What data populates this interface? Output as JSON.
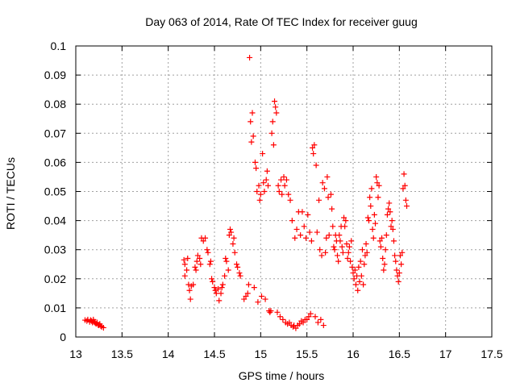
{
  "chart_data": {
    "type": "scatter",
    "title": "Day 063 of 2014, Rate Of TEC Index for receiver guug",
    "xlabel": "GPS time / hours",
    "ylabel": "ROTI / TECUs",
    "xlim": [
      13,
      17.5
    ],
    "ylim": [
      0,
      0.1
    ],
    "xticks": [
      "13",
      "13.5",
      "14",
      "14.5",
      "15",
      "15.5",
      "16",
      "16.5",
      "17",
      "17.5"
    ],
    "yticks": [
      "0",
      "0.01",
      "0.02",
      "0.03",
      "0.04",
      "0.05",
      "0.06",
      "0.07",
      "0.08",
      "0.09",
      "0.1"
    ],
    "grid": true,
    "marker": "+",
    "color": "#ff0000",
    "points": [
      [
        13.1,
        0.0058
      ],
      [
        13.12,
        0.0055
      ],
      [
        13.13,
        0.006
      ],
      [
        13.15,
        0.0052
      ],
      [
        13.16,
        0.0058
      ],
      [
        13.17,
        0.0055
      ],
      [
        13.18,
        0.005
      ],
      [
        13.19,
        0.006
      ],
      [
        13.2,
        0.0052
      ],
      [
        13.21,
        0.0048
      ],
      [
        13.22,
        0.0045
      ],
      [
        13.23,
        0.005
      ],
      [
        13.24,
        0.0042
      ],
      [
        13.25,
        0.004
      ],
      [
        13.26,
        0.0045
      ],
      [
        13.27,
        0.0038
      ],
      [
        13.28,
        0.0035
      ],
      [
        13.3,
        0.0032
      ],
      [
        14.17,
        0.0265
      ],
      [
        14.18,
        0.025
      ],
      [
        14.18,
        0.021
      ],
      [
        14.2,
        0.023
      ],
      [
        14.21,
        0.027
      ],
      [
        14.22,
        0.018
      ],
      [
        14.23,
        0.016
      ],
      [
        14.24,
        0.013
      ],
      [
        14.25,
        0.0175
      ],
      [
        14.27,
        0.018
      ],
      [
        14.29,
        0.024
      ],
      [
        14.3,
        0.023
      ],
      [
        14.31,
        0.026
      ],
      [
        14.32,
        0.028
      ],
      [
        14.34,
        0.027
      ],
      [
        14.35,
        0.025
      ],
      [
        14.36,
        0.034
      ],
      [
        14.38,
        0.033
      ],
      [
        14.4,
        0.034
      ],
      [
        14.42,
        0.03
      ],
      [
        14.43,
        0.029
      ],
      [
        14.45,
        0.025
      ],
      [
        14.46,
        0.026
      ],
      [
        14.47,
        0.02
      ],
      [
        14.48,
        0.019
      ],
      [
        14.5,
        0.017
      ],
      [
        14.51,
        0.016
      ],
      [
        14.52,
        0.015
      ],
      [
        14.54,
        0.0165
      ],
      [
        14.55,
        0.0125
      ],
      [
        14.57,
        0.015
      ],
      [
        14.58,
        0.017
      ],
      [
        14.59,
        0.018
      ],
      [
        14.61,
        0.021
      ],
      [
        14.62,
        0.027
      ],
      [
        14.63,
        0.026
      ],
      [
        14.65,
        0.023
      ],
      [
        14.66,
        0.035
      ],
      [
        14.67,
        0.037
      ],
      [
        14.68,
        0.036
      ],
      [
        14.7,
        0.032
      ],
      [
        14.71,
        0.034
      ],
      [
        14.72,
        0.029
      ],
      [
        14.74,
        0.025
      ],
      [
        14.75,
        0.024
      ],
      [
        14.77,
        0.022
      ],
      [
        14.78,
        0.021
      ],
      [
        14.82,
        0.013
      ],
      [
        14.84,
        0.014
      ],
      [
        14.86,
        0.015
      ],
      [
        14.87,
        0.018
      ],
      [
        14.88,
        0.096
      ],
      [
        14.89,
        0.074
      ],
      [
        14.9,
        0.067
      ],
      [
        14.91,
        0.077
      ],
      [
        14.92,
        0.069
      ],
      [
        14.93,
        0.017
      ],
      [
        14.94,
        0.06
      ],
      [
        14.95,
        0.058
      ],
      [
        14.96,
        0.05
      ],
      [
        14.97,
        0.012
      ],
      [
        14.98,
        0.052
      ],
      [
        14.99,
        0.047
      ],
      [
        15.0,
        0.049
      ],
      [
        15.01,
        0.014
      ],
      [
        15.02,
        0.063
      ],
      [
        15.03,
        0.053
      ],
      [
        15.04,
        0.05
      ],
      [
        15.05,
        0.013
      ],
      [
        15.06,
        0.054
      ],
      [
        15.07,
        0.057
      ],
      [
        15.08,
        0.052
      ],
      [
        15.09,
        0.009
      ],
      [
        15.1,
        0.0085
      ],
      [
        15.11,
        0.009
      ],
      [
        15.12,
        0.07
      ],
      [
        15.13,
        0.074
      ],
      [
        15.14,
        0.066
      ],
      [
        15.15,
        0.081
      ],
      [
        15.16,
        0.079
      ],
      [
        15.17,
        0.077
      ],
      [
        15.18,
        0.0085
      ],
      [
        15.19,
        0.052
      ],
      [
        15.2,
        0.05
      ],
      [
        15.21,
        0.007
      ],
      [
        15.22,
        0.054
      ],
      [
        15.23,
        0.049
      ],
      [
        15.24,
        0.006
      ],
      [
        15.25,
        0.055
      ],
      [
        15.26,
        0.052
      ],
      [
        15.27,
        0.005
      ],
      [
        15.28,
        0.054
      ],
      [
        15.29,
        0.0045
      ],
      [
        15.3,
        0.049
      ],
      [
        15.31,
        0.005
      ],
      [
        15.32,
        0.047
      ],
      [
        15.33,
        0.004
      ],
      [
        15.34,
        0.04
      ],
      [
        15.35,
        0.0035
      ],
      [
        15.36,
        0.004
      ],
      [
        15.37,
        0.034
      ],
      [
        15.38,
        0.003
      ],
      [
        15.39,
        0.037
      ],
      [
        15.4,
        0.004
      ],
      [
        15.41,
        0.043
      ],
      [
        15.42,
        0.0045
      ],
      [
        15.43,
        0.035
      ],
      [
        15.44,
        0.0055
      ],
      [
        15.45,
        0.043
      ],
      [
        15.46,
        0.005
      ],
      [
        15.47,
        0.038
      ],
      [
        15.48,
        0.006
      ],
      [
        15.49,
        0.034
      ],
      [
        15.5,
        0.006
      ],
      [
        15.51,
        0.042
      ],
      [
        15.52,
        0.007
      ],
      [
        15.53,
        0.036
      ],
      [
        15.54,
        0.008
      ],
      [
        15.55,
        0.033
      ],
      [
        15.56,
        0.065
      ],
      [
        15.57,
        0.063
      ],
      [
        15.58,
        0.066
      ],
      [
        15.59,
        0.007
      ],
      [
        15.6,
        0.059
      ],
      [
        15.61,
        0.036
      ],
      [
        15.62,
        0.005
      ],
      [
        15.63,
        0.047
      ],
      [
        15.64,
        0.03
      ],
      [
        15.65,
        0.006
      ],
      [
        15.66,
        0.028
      ],
      [
        15.67,
        0.053
      ],
      [
        15.68,
        0.004
      ],
      [
        15.69,
        0.051
      ],
      [
        15.7,
        0.029
      ],
      [
        15.71,
        0.034
      ],
      [
        15.72,
        0.055
      ],
      [
        15.73,
        0.048
      ],
      [
        15.74,
        0.035
      ],
      [
        15.76,
        0.049
      ],
      [
        15.77,
        0.044
      ],
      [
        15.78,
        0.038
      ],
      [
        15.79,
        0.031
      ],
      [
        15.8,
        0.03
      ],
      [
        15.81,
        0.035
      ],
      [
        15.82,
        0.033
      ],
      [
        15.83,
        0.028
      ],
      [
        15.84,
        0.026
      ],
      [
        15.85,
        0.035
      ],
      [
        15.86,
        0.033
      ],
      [
        15.87,
        0.038
      ],
      [
        15.88,
        0.031
      ],
      [
        15.89,
        0.029
      ],
      [
        15.9,
        0.041
      ],
      [
        15.91,
        0.038
      ],
      [
        15.92,
        0.04
      ],
      [
        15.93,
        0.032
      ],
      [
        15.94,
        0.027
      ],
      [
        15.95,
        0.029
      ],
      [
        15.96,
        0.031
      ],
      [
        15.97,
        0.026
      ],
      [
        15.98,
        0.033
      ],
      [
        15.99,
        0.024
      ],
      [
        16.0,
        0.022
      ],
      [
        16.01,
        0.02
      ],
      [
        16.02,
        0.023
      ],
      [
        16.03,
        0.018
      ],
      [
        16.04,
        0.021
      ],
      [
        16.05,
        0.016
      ],
      [
        16.06,
        0.024
      ],
      [
        16.07,
        0.019
      ],
      [
        16.08,
        0.026
      ],
      [
        16.09,
        0.021
      ],
      [
        16.1,
        0.03
      ],
      [
        16.11,
        0.018
      ],
      [
        16.12,
        0.025
      ],
      [
        16.13,
        0.028
      ],
      [
        16.14,
        0.032
      ],
      [
        16.15,
        0.029
      ],
      [
        16.16,
        0.041
      ],
      [
        16.17,
        0.04
      ],
      [
        16.18,
        0.048
      ],
      [
        16.19,
        0.045
      ],
      [
        16.2,
        0.051
      ],
      [
        16.21,
        0.037
      ],
      [
        16.22,
        0.034
      ],
      [
        16.23,
        0.042
      ],
      [
        16.24,
        0.039
      ],
      [
        16.25,
        0.055
      ],
      [
        16.26,
        0.053
      ],
      [
        16.27,
        0.048
      ],
      [
        16.28,
        0.052
      ],
      [
        16.29,
        0.033
      ],
      [
        16.3,
        0.031
      ],
      [
        16.31,
        0.034
      ],
      [
        16.32,
        0.027
      ],
      [
        16.33,
        0.023
      ],
      [
        16.34,
        0.025
      ],
      [
        16.35,
        0.03
      ],
      [
        16.36,
        0.035
      ],
      [
        16.37,
        0.042
      ],
      [
        16.38,
        0.044
      ],
      [
        16.39,
        0.046
      ],
      [
        16.4,
        0.043
      ],
      [
        16.41,
        0.038
      ],
      [
        16.42,
        0.04
      ],
      [
        16.43,
        0.037
      ],
      [
        16.44,
        0.033
      ],
      [
        16.45,
        0.028
      ],
      [
        16.46,
        0.026
      ],
      [
        16.47,
        0.023
      ],
      [
        16.48,
        0.021
      ],
      [
        16.49,
        0.019
      ],
      [
        16.5,
        0.022
      ],
      [
        16.51,
        0.028
      ],
      [
        16.52,
        0.025
      ],
      [
        16.53,
        0.029
      ],
      [
        16.54,
        0.051
      ],
      [
        16.55,
        0.056
      ],
      [
        16.56,
        0.052
      ],
      [
        16.57,
        0.047
      ],
      [
        16.58,
        0.045
      ]
    ]
  }
}
